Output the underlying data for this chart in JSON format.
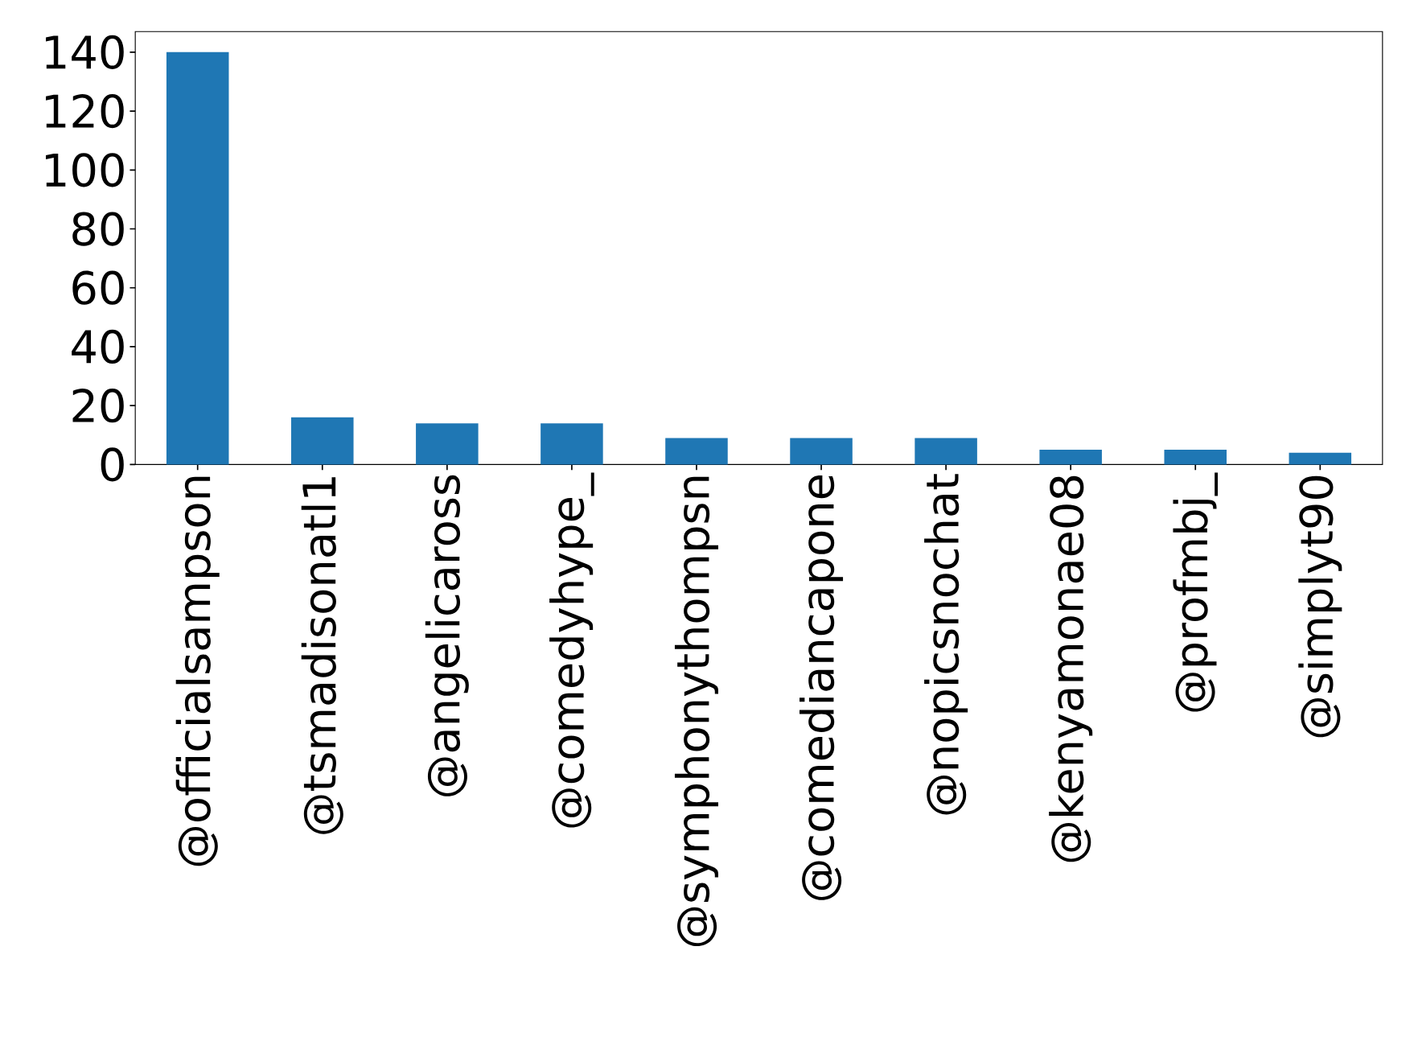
{
  "chart_data": {
    "type": "bar",
    "categories": [
      "@officialsampson",
      "@tsmadisonatl1",
      "@angelicaross",
      "@comedyhype_",
      "@symphonythompsn",
      "@comediancapone",
      "@nopicsnochat",
      "@kenyamonae08",
      "@profmbj_",
      "@simplyt90"
    ],
    "values": [
      140,
      16,
      14,
      14,
      9,
      9,
      9,
      5,
      5,
      4
    ],
    "color": "#1f77b4",
    "ylim": [
      0,
      147
    ],
    "yticks": [
      0,
      20,
      40,
      60,
      80,
      100,
      120,
      140
    ],
    "grid": false
  }
}
